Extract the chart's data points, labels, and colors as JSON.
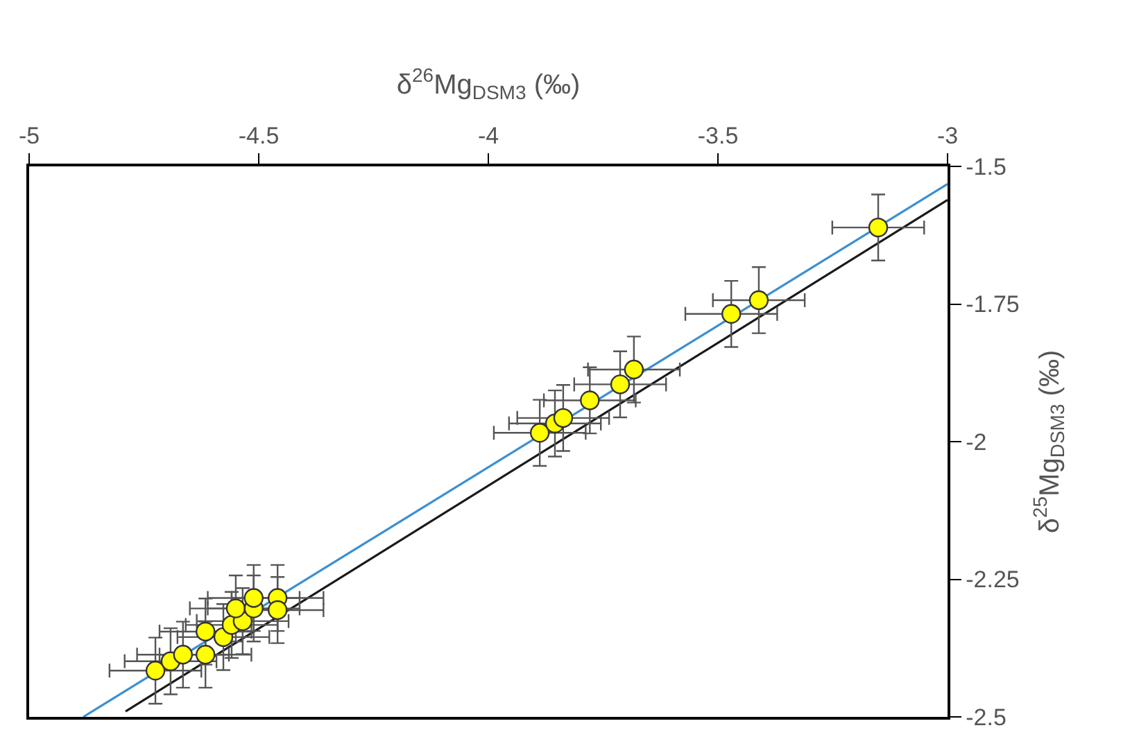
{
  "chart_data": {
    "type": "scatter",
    "xlabel": "δ$^{26}$Mg$_{DSM3}$ (‰)",
    "ylabel": "δ$^{25}$Mg$_{DSM3}$ (‰)",
    "xlim": [
      -5,
      -3
    ],
    "xticks": [
      -5,
      -4.5,
      -4,
      -3.5,
      -3
    ],
    "ylim": [
      -2.5,
      -1.5
    ],
    "yticks": [
      -2.5,
      -2.25,
      -2,
      -1.75,
      -1.5
    ],
    "marker": "circle",
    "series": [
      {
        "type": "line",
        "marker": "none",
        "color": "#3b8fd1",
        "x": [
          -4.882,
          -3
        ],
        "values": [
          -2.5,
          -1.532
        ]
      },
      {
        "type": "line",
        "marker": "none",
        "color": "#1a1a1a",
        "x": [
          -4.79,
          -3
        ],
        "values": [
          -2.49,
          -1.561
        ]
      },
      {
        "color": "#ffff00",
        "x": [
          -4.725,
          -4.692,
          -4.665,
          -4.616,
          -4.616,
          -4.577,
          -4.559,
          -4.535,
          -4.55,
          -4.511,
          -4.511,
          -4.459,
          -4.459,
          -3.888,
          -3.855,
          -3.837,
          -3.779,
          -3.713,
          -3.683,
          -3.471,
          -3.411,
          -3.151
        ],
        "values": [
          -2.416,
          -2.399,
          -2.387,
          -2.387,
          -2.345,
          -2.355,
          -2.333,
          -2.326,
          -2.303,
          -2.303,
          -2.284,
          -2.284,
          -2.306,
          -1.984,
          -1.967,
          -1.957,
          -1.925,
          -1.896,
          -1.869,
          -1.768,
          -1.743,
          -1.611
        ],
        "errors": [
          0.06,
          0.06,
          0.06,
          0.06,
          0.06,
          0.06,
          0.06,
          0.06,
          0.06,
          0.06,
          0.06,
          0.06,
          0.06,
          0.06,
          0.06,
          0.06,
          0.06,
          0.06,
          0.06,
          0.06,
          0.06,
          0.06
        ],
        "xerrors": [
          0.1,
          0.1,
          0.1,
          0.1,
          0.1,
          0.1,
          0.1,
          0.1,
          0.1,
          0.1,
          0.1,
          0.1,
          0.1,
          0.1,
          0.1,
          0.1,
          0.1,
          0.1,
          0.1,
          0.1,
          0.1,
          0.1
        ]
      }
    ]
  }
}
